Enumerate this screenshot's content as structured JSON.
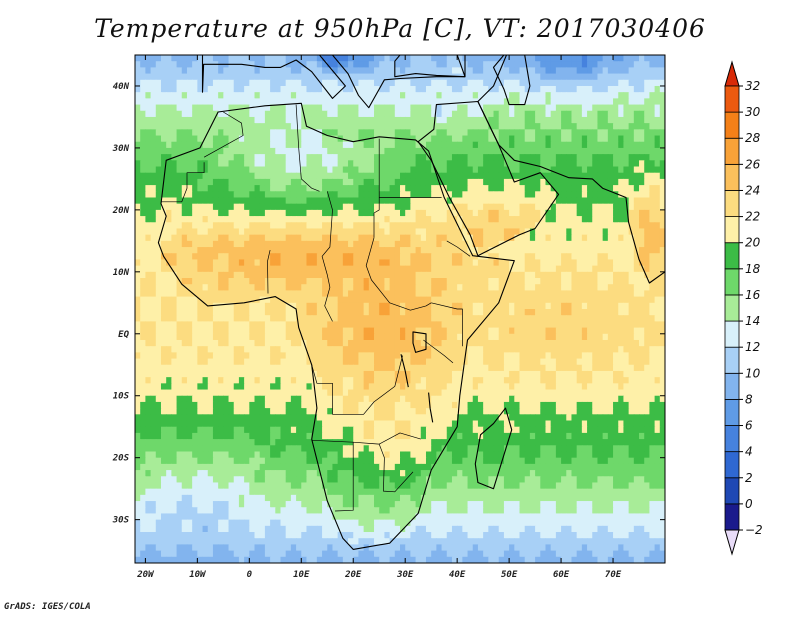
{
  "title": "Temperature at 950hPa [C], VT: 2017030406",
  "credit": "GrADS: IGES/COLA",
  "map": {
    "lon_range": [
      -22,
      80
    ],
    "lat_range": [
      -37,
      45
    ],
    "lon_ticks": [
      {
        "value": -20,
        "label": "20W"
      },
      {
        "value": -10,
        "label": "10W"
      },
      {
        "value": 0,
        "label": "0"
      },
      {
        "value": 10,
        "label": "10E"
      },
      {
        "value": 20,
        "label": "20E"
      },
      {
        "value": 30,
        "label": "30E"
      },
      {
        "value": 40,
        "label": "40E"
      },
      {
        "value": 50,
        "label": "50E"
      },
      {
        "value": 60,
        "label": "60E"
      },
      {
        "value": 70,
        "label": "70E"
      }
    ],
    "lat_ticks": [
      {
        "value": 40,
        "label": "40N"
      },
      {
        "value": 30,
        "label": "30N"
      },
      {
        "value": 20,
        "label": "20N"
      },
      {
        "value": 10,
        "label": "10N"
      },
      {
        "value": 0,
        "label": "EQ"
      },
      {
        "value": -10,
        "label": "10S"
      },
      {
        "value": -20,
        "label": "20S"
      },
      {
        "value": -30,
        "label": "30S"
      }
    ]
  },
  "colorbar": {
    "levels": [
      -2,
      0,
      2,
      4,
      6,
      8,
      10,
      12,
      14,
      16,
      18,
      20,
      22,
      24,
      26,
      28,
      30,
      32
    ],
    "colors": [
      "#1a1a8c",
      "#1f48b4",
      "#2f68d2",
      "#4682de",
      "#5f9be6",
      "#82b4ee",
      "#a8d0f6",
      "#d8f0fa",
      "#a8ec98",
      "#6ed86a",
      "#3cbc46",
      "#fef0a8",
      "#fcdc80",
      "#fbc05c",
      "#f8a238",
      "#f48018",
      "#ec5a10",
      "#d82a08",
      "#e8dcf8"
    ],
    "under_color": "#e8dcf8",
    "over_color": "#d82a08"
  },
  "field_features": [
    {
      "name": "sahel-hot-band",
      "lon": 10,
      "lat": 13,
      "value": 27
    },
    {
      "name": "central-africa-warm",
      "lon": 24,
      "lat": 0,
      "value": 26
    },
    {
      "name": "southern-africa-warm",
      "lon": 25,
      "lat": -20,
      "value": 25
    },
    {
      "name": "arabia-warm",
      "lon": 47,
      "lat": 18,
      "value": 24
    },
    {
      "name": "india-hot",
      "lon": 77,
      "lat": 18,
      "value": 27
    },
    {
      "name": "mediterranean-cool",
      "lon": 15,
      "lat": 38,
      "value": 10
    },
    {
      "name": "balkans-cold",
      "lon": 22,
      "lat": 43,
      "value": 6
    },
    {
      "name": "caspian-cold",
      "lon": 62,
      "lat": 43,
      "value": 2
    },
    {
      "name": "atlantic-north-cool",
      "lon": -20,
      "lat": 30,
      "value": 12
    },
    {
      "name": "sahara-mild",
      "lon": 12,
      "lat": 26,
      "value": 17
    },
    {
      "name": "atlantic-south-mild",
      "lon": -8,
      "lat": -22,
      "value": 17
    },
    {
      "name": "south-ocean-cool",
      "lon": 25,
      "lat": -36,
      "value": 14
    }
  ]
}
